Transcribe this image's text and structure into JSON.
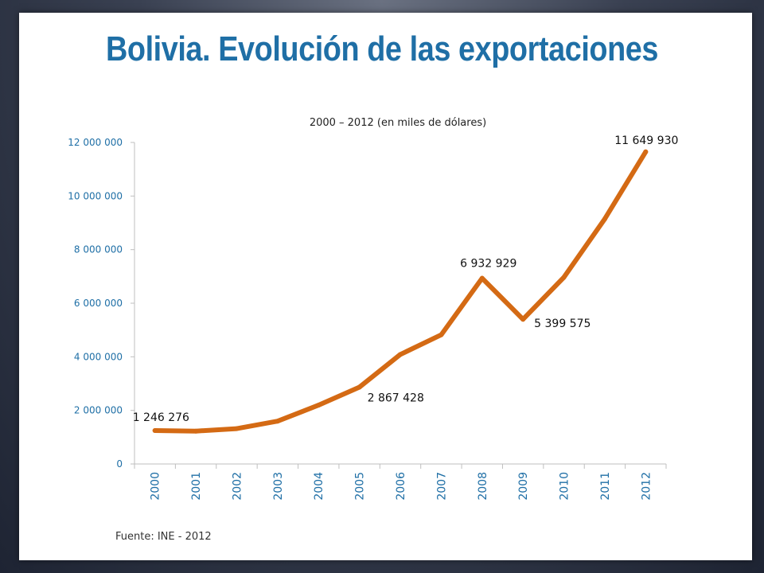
{
  "slide": {
    "title": "Bolivia. Evolución de las exportaciones",
    "footer": "Fuente: INE - 2012"
  },
  "colors": {
    "title": "#1f6fa6",
    "axis_text": "#1f6fa6",
    "line": "#d46a14",
    "label_text": "#111111"
  },
  "chart_data": {
    "type": "line",
    "title": "2000 – 2012 (en miles de dólares)",
    "categories": [
      "2000",
      "2001",
      "2002",
      "2003",
      "2004",
      "2005",
      "2006",
      "2007",
      "2008",
      "2009",
      "2010",
      "2011",
      "2012"
    ],
    "series": [
      {
        "values": [
          1246276,
          1226000,
          1320000,
          1598000,
          2195000,
          2867428,
          4088000,
          4822000,
          6932929,
          5399575,
          6966000,
          9146000,
          11649930
        ]
      }
    ],
    "data_labels": [
      {
        "index": 0,
        "text": "1 246 276"
      },
      {
        "index": 5,
        "text": "2 867 428"
      },
      {
        "index": 8,
        "text": "6 932 929"
      },
      {
        "index": 9,
        "text": "5 399 575"
      },
      {
        "index": 12,
        "text": "11 649 930"
      }
    ],
    "yticks": [
      "0",
      "2 000 000",
      "4 000 000",
      "6 000 000",
      "8 000 000",
      "10 000 000",
      "12 000 000"
    ],
    "ylim": [
      0,
      12000000
    ],
    "grid": false,
    "legend": "none"
  }
}
